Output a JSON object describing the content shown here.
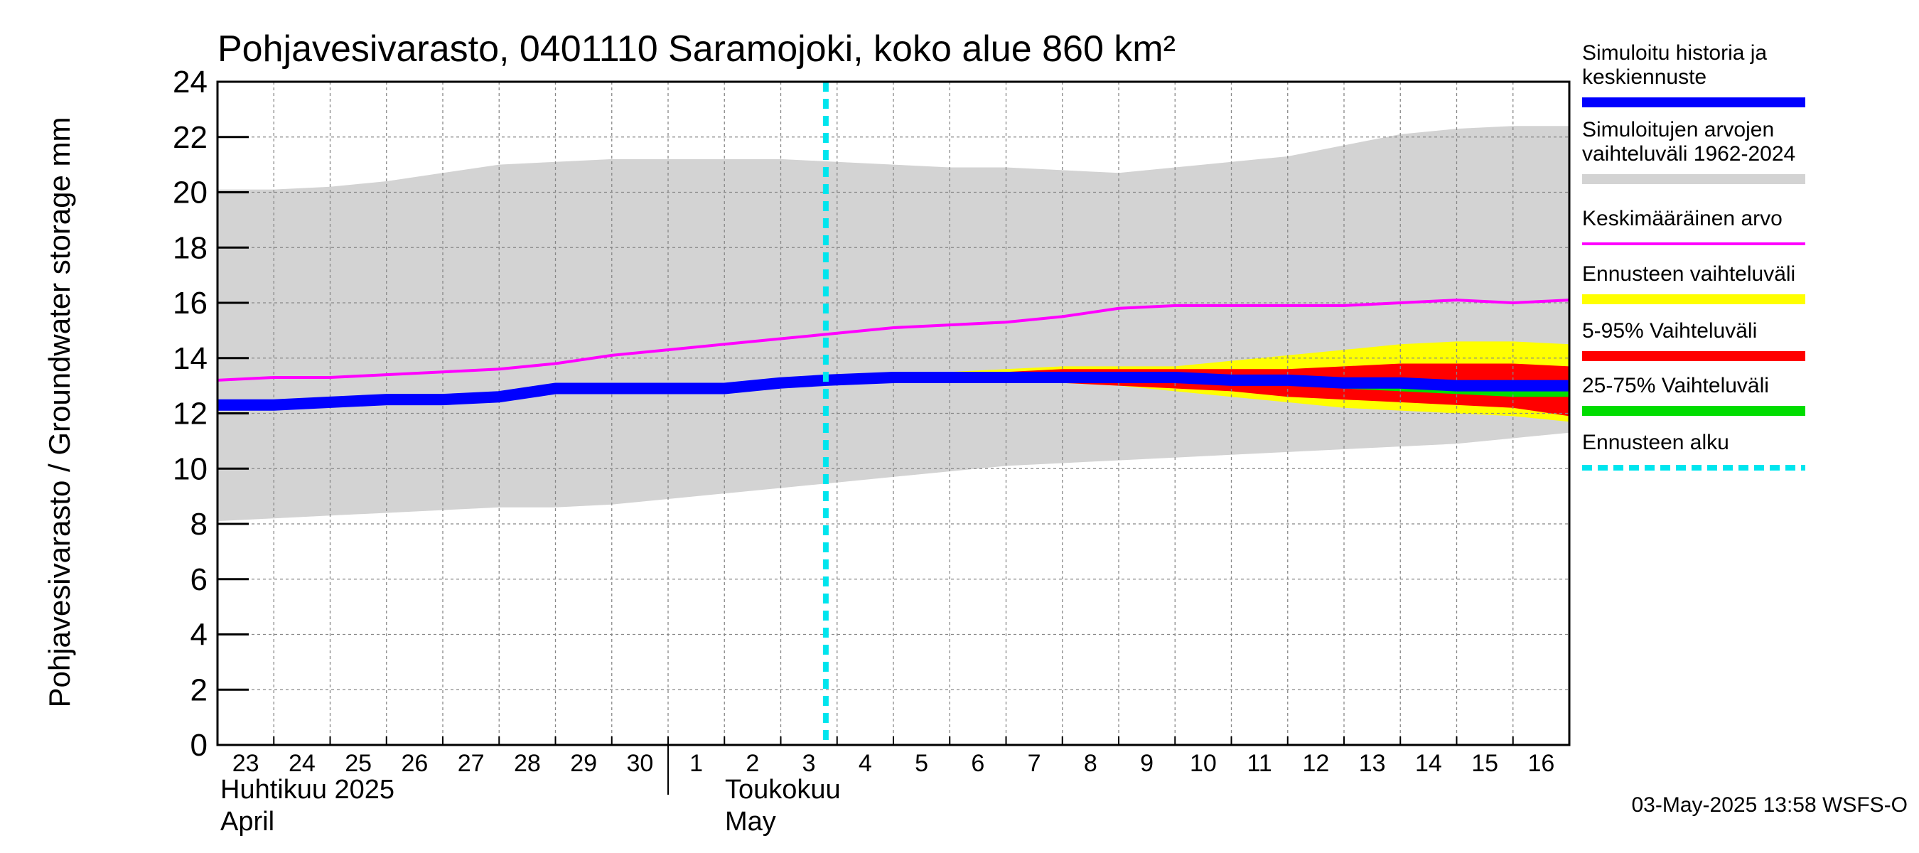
{
  "chart_data": {
    "type": "area",
    "title": "Pohjavesivarasto, 0401110 Saramojoki, koko alue 860 km²",
    "ylabel": "Pohjavesivarasto / Groundwater storage   mm",
    "ylim": [
      0,
      24
    ],
    "yticks": [
      0,
      2,
      4,
      6,
      8,
      10,
      12,
      14,
      16,
      18,
      20,
      22,
      24
    ],
    "grid": true,
    "x_days": [
      "23",
      "24",
      "25",
      "26",
      "27",
      "28",
      "29",
      "30",
      "1",
      "2",
      "3",
      "4",
      "5",
      "6",
      "7",
      "8",
      "9",
      "10",
      "11",
      "12",
      "13",
      "14",
      "15",
      "16"
    ],
    "month_labels": [
      {
        "fi": "Huhtikuu  2025",
        "en": "April",
        "start_day_index": 0
      },
      {
        "fi": "Toukokuu",
        "en": "May",
        "start_day_index": 8
      }
    ],
    "x_range": [
      0,
      24
    ],
    "forecast_start_x": 10.8,
    "series": {
      "history_range": {
        "name": "Simuloitujen arvojen vaihteluväli 1962-2024",
        "color": "#d3d3d3",
        "x": [
          0,
          1,
          2,
          3,
          4,
          5,
          6,
          7,
          8,
          9,
          10,
          11,
          12,
          13,
          14,
          15,
          16,
          17,
          18,
          19,
          20,
          21,
          22,
          23,
          24
        ],
        "upper": [
          20.1,
          20.1,
          20.2,
          20.4,
          20.7,
          21.0,
          21.1,
          21.2,
          21.2,
          21.2,
          21.2,
          21.1,
          21.0,
          20.9,
          20.9,
          20.8,
          20.7,
          20.9,
          21.1,
          21.3,
          21.7,
          22.1,
          22.3,
          22.4,
          22.4
        ],
        "lower": [
          8.1,
          8.2,
          8.3,
          8.4,
          8.5,
          8.6,
          8.6,
          8.7,
          8.9,
          9.1,
          9.3,
          9.5,
          9.7,
          9.9,
          10.1,
          10.2,
          10.3,
          10.4,
          10.5,
          10.6,
          10.7,
          10.8,
          10.9,
          11.1,
          11.3
        ]
      },
      "mean": {
        "name": "Keskimääräinen arvo",
        "color": "#ff00ff",
        "x": [
          0,
          1,
          2,
          3,
          4,
          5,
          6,
          7,
          8,
          9,
          10,
          11,
          12,
          13,
          14,
          15,
          16,
          17,
          18,
          19,
          20,
          21,
          22,
          23,
          24
        ],
        "y": [
          13.2,
          13.3,
          13.3,
          13.4,
          13.5,
          13.6,
          13.8,
          14.1,
          14.3,
          14.5,
          14.7,
          14.9,
          15.1,
          15.2,
          15.3,
          15.5,
          15.8,
          15.9,
          15.9,
          15.9,
          15.9,
          16.0,
          16.1,
          16.0,
          16.1
        ]
      },
      "forecast_range": {
        "name": "Ennusteen vaihteluväli",
        "color": "#ffff00",
        "x": [
          10.8,
          12,
          13,
          14,
          15,
          16,
          17,
          18,
          19,
          20,
          21,
          22,
          23,
          24
        ],
        "upper": [
          13.2,
          13.4,
          13.5,
          13.6,
          13.7,
          13.7,
          13.7,
          13.9,
          14.1,
          14.3,
          14.5,
          14.6,
          14.6,
          14.5
        ],
        "lower": [
          13.2,
          13.3,
          13.3,
          13.2,
          13.1,
          13.0,
          12.8,
          12.6,
          12.4,
          12.2,
          12.1,
          12.0,
          11.9,
          11.7
        ]
      },
      "p5_95": {
        "name": "5-95% Vaihteluväli",
        "color": "#ff0000",
        "x": [
          10.8,
          12,
          13,
          14,
          15,
          16,
          17,
          18,
          19,
          20,
          21,
          22,
          23,
          24
        ],
        "upper": [
          13.2,
          13.4,
          13.5,
          13.5,
          13.6,
          13.6,
          13.6,
          13.6,
          13.6,
          13.7,
          13.8,
          13.8,
          13.8,
          13.7
        ],
        "lower": [
          13.2,
          13.3,
          13.3,
          13.2,
          13.1,
          13.0,
          12.9,
          12.8,
          12.6,
          12.5,
          12.4,
          12.3,
          12.2,
          11.9
        ]
      },
      "p25_75": {
        "name": "25-75% Vaihteluväli",
        "color": "#00dd00",
        "x": [
          10.8,
          12,
          13,
          14,
          15,
          16,
          17,
          18,
          19,
          20,
          21,
          22,
          23,
          24
        ],
        "upper": [
          13.2,
          13.3,
          13.4,
          13.4,
          13.4,
          13.4,
          13.4,
          13.4,
          13.4,
          13.3,
          13.3,
          13.2,
          13.2,
          13.1
        ],
        "lower": [
          13.2,
          13.3,
          13.3,
          13.3,
          13.2,
          13.2,
          13.1,
          13.1,
          13.0,
          12.9,
          12.8,
          12.7,
          12.6,
          12.6
        ]
      },
      "simulated": {
        "name": "Simuloitu historia ja keskiennuste",
        "color": "#0000ff",
        "x": [
          0,
          1,
          2,
          3,
          4,
          5,
          6,
          7,
          8,
          9,
          10,
          10.8,
          12,
          13,
          14,
          15,
          16,
          17,
          18,
          19,
          20,
          21,
          22,
          23,
          24
        ],
        "y": [
          12.3,
          12.3,
          12.4,
          12.5,
          12.5,
          12.6,
          12.9,
          12.9,
          12.9,
          12.9,
          13.1,
          13.2,
          13.3,
          13.3,
          13.3,
          13.3,
          13.3,
          13.3,
          13.2,
          13.2,
          13.1,
          13.1,
          13.0,
          13.0,
          13.0
        ]
      }
    },
    "legend": [
      {
        "label": "Simuloitu historia ja keskiennuste",
        "color": "#0000ff",
        "style": "thick"
      },
      {
        "label": "Simuloitujen arvojen vaihteluväli 1962-2024",
        "color": "#d3d3d3",
        "style": "thick"
      },
      {
        "label": "Keskimääräinen arvo",
        "color": "#ff00ff",
        "style": "thin"
      },
      {
        "label": "Ennusteen vaihteluväli",
        "color": "#ffff00",
        "style": "thick"
      },
      {
        "label": "5-95% Vaihteluväli",
        "color": "#ff0000",
        "style": "thick"
      },
      {
        "label": "25-75% Vaihteluväli",
        "color": "#00dd00",
        "style": "thick"
      },
      {
        "label": "Ennusteen alku",
        "color": "#00e5ee",
        "style": "dashed"
      }
    ],
    "legend_lines": [
      [
        "Simuloitu historia ja",
        "keskiennuste"
      ],
      [
        "Simuloitujen arvojen",
        "vaihteluväli 1962-2024"
      ],
      [
        "Keskimääräinen arvo"
      ],
      [
        "Ennusteen vaihteluväli"
      ],
      [
        "5-95% Vaihteluväli"
      ],
      [
        "25-75% Vaihteluväli"
      ],
      [
        "Ennusteen alku"
      ]
    ],
    "footer": "03-May-2025 13:58 WSFS-O"
  }
}
